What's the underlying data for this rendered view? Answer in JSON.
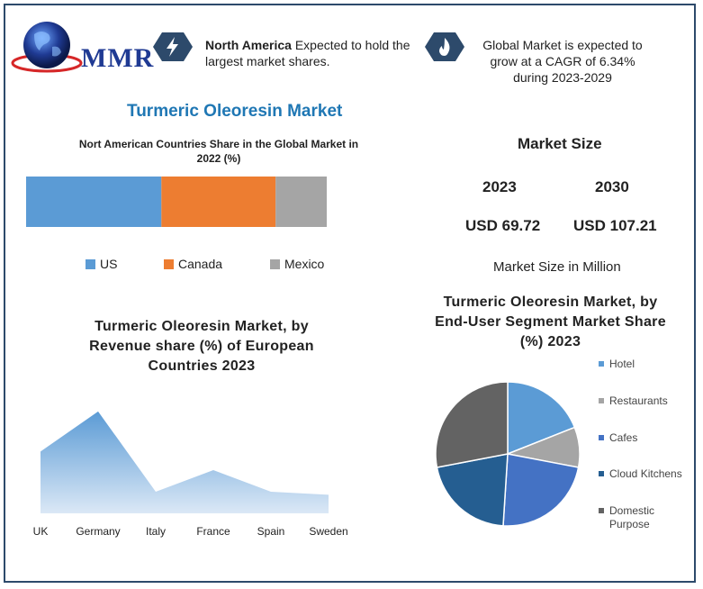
{
  "logo": {
    "text": "MMR"
  },
  "header": {
    "info1_bold": "North America",
    "info1_rest": " Expected to hold the largest market shares.",
    "info2_line1": "Global Market is expected to",
    "info2_line2": "grow at a CAGR of 6.34%",
    "info2_line3": "during 2023-2029",
    "icon1": "lightning-icon",
    "icon2": "flame-icon",
    "accent_color": "#2d4a6b"
  },
  "main_title": "Turmeric Oleoresin Market",
  "market_size": {
    "title": "Market Size",
    "years": [
      "2023",
      "2030"
    ],
    "values": [
      "USD 69.72",
      "USD 107.21"
    ],
    "note": "Market Size in Million"
  },
  "chart_data": [
    {
      "type": "bar",
      "orientation": "horizontal-stacked",
      "title": "Nort American Countries Share in the Global Market in 2022 (%)",
      "series": [
        {
          "name": "US",
          "values": [
            45
          ],
          "color": "#5b9bd5"
        },
        {
          "name": "Canada",
          "values": [
            38
          ],
          "color": "#ed7d31"
        },
        {
          "name": "Mexico",
          "values": [
            17
          ],
          "color": "#a5a5a5"
        }
      ],
      "legend": "bottom"
    },
    {
      "type": "area",
      "title": "Turmeric Oleoresin Market, by Revenue share (%) of European Countries 2023",
      "categories": [
        "UK",
        "Germany",
        "Italy",
        "France",
        "Spain",
        "Sweden"
      ],
      "values": [
        20,
        33,
        7,
        14,
        7,
        6
      ],
      "color": "#5b9bd5"
    },
    {
      "type": "pie",
      "title": "Turmeric Oleoresin Market, by End-User Segment Market Share (%) 2023",
      "labels": [
        "Hotel",
        "Restaurants",
        "Cafes",
        "Cloud Kitchens",
        "Domestic Purpose"
      ],
      "values": [
        19,
        9,
        23,
        21,
        28
      ],
      "colors": [
        "#5b9bd5",
        "#a5a5a5",
        "#4472c4",
        "#255e91",
        "#636363"
      ],
      "legend": "right"
    }
  ]
}
